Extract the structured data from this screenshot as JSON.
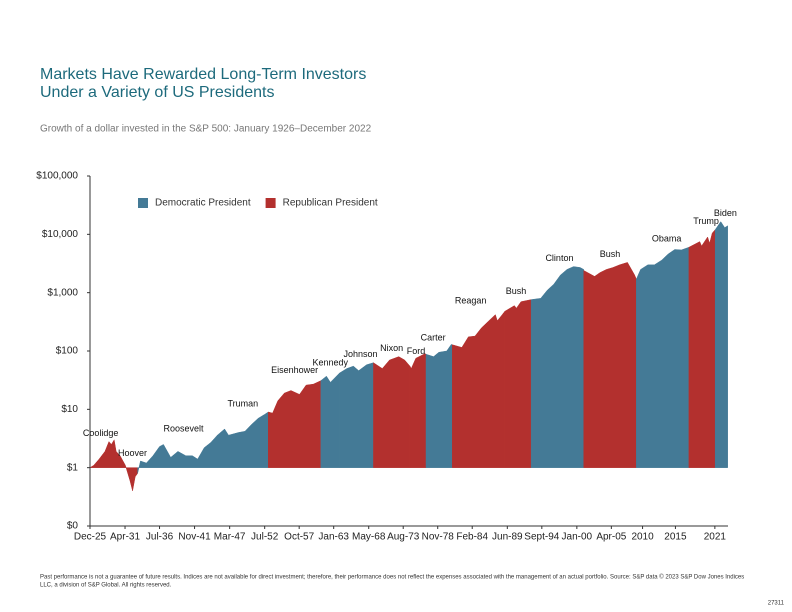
{
  "chart_data": {
    "type": "area",
    "title": [
      "Markets Have Rewarded Long-Term Investors",
      "Under a Variety of US Presidents"
    ],
    "subtitle": "Growth of a dollar invested in the S&P 500: January 1926–December 2022",
    "footnote": [
      "Past performance is not a guarantee of future results. Indices are not available for direct investment; therefore, their performance does not reflect the expenses associated with the management of an actual portfolio. Source: S&P data © 2023 S&P Dow Jones Indices",
      "LLC, a division of S&P Global. All rights reserved."
    ],
    "code": "27311",
    "log_scale": true,
    "legend": [
      {
        "name": "Democratic President",
        "color": "#447a96"
      },
      {
        "name": "Republican President",
        "color": "#b3302e"
      }
    ],
    "xlim": [
      1925.92,
      2023
    ],
    "xticks": [
      {
        "value": 1925.92,
        "label": "Dec-25"
      },
      {
        "value": 1931.25,
        "label": "Apr-31"
      },
      {
        "value": 1936.5,
        "label": "Jul-36"
      },
      {
        "value": 1941.83,
        "label": "Nov-41"
      },
      {
        "value": 1947.17,
        "label": "Mar-47"
      },
      {
        "value": 1952.5,
        "label": "Jul-52"
      },
      {
        "value": 1957.75,
        "label": "Oct-57"
      },
      {
        "value": 1963.0,
        "label": "Jan-63"
      },
      {
        "value": 1968.33,
        "label": "May-68"
      },
      {
        "value": 1973.58,
        "label": "Aug-73"
      },
      {
        "value": 1978.83,
        "label": "Nov-78"
      },
      {
        "value": 1984.08,
        "label": "Feb-84"
      },
      {
        "value": 1989.42,
        "label": "Jun-89"
      },
      {
        "value": 1994.67,
        "label": "Sept-94"
      },
      {
        "value": 2000.0,
        "label": "Jan-00"
      },
      {
        "value": 2005.25,
        "label": "Apr-05"
      },
      2010,
      2015,
      2021
    ],
    "ylim": [
      0.1,
      100000
    ],
    "yticks": [
      {
        "value": 0,
        "label": "$0"
      },
      {
        "value": 1,
        "label": "$1"
      },
      {
        "value": 10,
        "label": "$10"
      },
      {
        "value": 100,
        "label": "$100"
      },
      {
        "value": 1000,
        "label": "$1,000"
      },
      {
        "value": 10000,
        "label": "$10,000"
      },
      {
        "value": 100000,
        "label": "$100,000"
      }
    ],
    "segments": [
      {
        "name": "Coolidge",
        "color": "#b3302e",
        "x": [
          1925.92,
          1926.5,
          1927.3,
          1928.2,
          1928.8,
          1929.17
        ],
        "values": [
          1,
          1.1,
          1.4,
          1.9,
          2.8,
          2.5
        ]
      },
      {
        "name": "Hoover",
        "color": "#b3302e",
        "x": [
          1929.17,
          1929.6,
          1929.9,
          1930.5,
          1931.3,
          1932.0,
          1932.4,
          1932.8,
          1933.17
        ],
        "values": [
          2.5,
          3.0,
          1.9,
          1.6,
          1.1,
          0.6,
          0.4,
          0.7,
          0.8
        ]
      },
      {
        "name": "Roosevelt",
        "color": "#447a96",
        "x": [
          1933.17,
          1933.6,
          1934.5,
          1935.5,
          1936.5,
          1937.1,
          1938.2,
          1939.3,
          1940.5,
          1941.5,
          1942.3,
          1943.3,
          1944.3,
          1945.3
        ],
        "values": [
          0.8,
          1.3,
          1.2,
          1.6,
          2.3,
          2.5,
          1.5,
          1.9,
          1.6,
          1.6,
          1.4,
          2.2,
          2.7,
          3.6
        ]
      },
      {
        "name": "Truman",
        "color": "#447a96",
        "x": [
          1945.3,
          1946.4,
          1947.0,
          1948.5,
          1949.5,
          1950.5,
          1951.5,
          1952.5,
          1953.05
        ],
        "values": [
          3.6,
          4.6,
          3.6,
          4.0,
          4.2,
          5.5,
          7.0,
          8.2,
          9.0
        ]
      },
      {
        "name": "Eisenhower",
        "color": "#b3302e",
        "x": [
          1953.05,
          1953.7,
          1954.5,
          1955.5,
          1956.5,
          1957.8,
          1958.8,
          1959.9,
          1961.05
        ],
        "values": [
          9.0,
          8.6,
          14,
          19,
          21,
          18,
          26,
          27,
          31
        ]
      },
      {
        "name": "Kennedy",
        "color": "#447a96",
        "x": [
          1961.05,
          1961.9,
          1962.5,
          1963.9
        ],
        "values": [
          31,
          37,
          29,
          42
        ]
      },
      {
        "name": "Johnson",
        "color": "#447a96",
        "x": [
          1963.9,
          1965.0,
          1966.0,
          1966.8,
          1968.0,
          1969.05
        ],
        "values": [
          42,
          50,
          55,
          46,
          58,
          63
        ]
      },
      {
        "name": "Nixon",
        "color": "#b3302e",
        "x": [
          1969.05,
          1970.4,
          1971.5,
          1972.9,
          1973.8,
          1974.6
        ],
        "values": [
          63,
          50,
          70,
          80,
          70,
          55
        ]
      },
      {
        "name": "Ford",
        "color": "#b3302e",
        "x": [
          1974.6,
          1974.8,
          1975.5,
          1976.9,
          1977.05
        ],
        "values": [
          55,
          50,
          75,
          90,
          88
        ]
      },
      {
        "name": "Carter",
        "color": "#447a96",
        "x": [
          1977.05,
          1978.2,
          1979.0,
          1980.2,
          1980.9,
          1981.05
        ],
        "values": [
          88,
          80,
          95,
          100,
          130,
          128
        ]
      },
      {
        "name": "Reagan",
        "color": "#b3302e",
        "x": [
          1981.05,
          1982.5,
          1983.5,
          1984.5,
          1985.5,
          1986.5,
          1987.6,
          1987.9,
          1988.5,
          1989.05
        ],
        "values": [
          128,
          115,
          175,
          180,
          250,
          320,
          420,
          330,
          400,
          480
        ]
      },
      {
        "name": "Bush",
        "color": "#b3302e",
        "x": [
          1989.05,
          1990.5,
          1990.8,
          1991.5,
          1993.05
        ],
        "values": [
          480,
          600,
          540,
          700,
          760
        ]
      },
      {
        "name": "Clinton",
        "color": "#447a96",
        "x": [
          1993.05,
          1994.5,
          1995.5,
          1996.5,
          1997.5,
          1998.5,
          1999.5,
          2000.5,
          2001.05
        ],
        "values": [
          760,
          800,
          1100,
          1400,
          2000,
          2500,
          2800,
          2700,
          2500
        ]
      },
      {
        "name": "Bush",
        "color": "#b3302e",
        "x": [
          2001.05,
          2002.7,
          2003.5,
          2004.5,
          2005.5,
          2006.5,
          2007.7,
          2008.8,
          2009.05
        ],
        "values": [
          2400,
          1900,
          2200,
          2500,
          2700,
          3000,
          3300,
          2000,
          1700
        ]
      },
      {
        "name": "Obama",
        "color": "#447a96",
        "x": [
          2009.05,
          2009.7,
          2010.8,
          2011.8,
          2012.9,
          2013.9,
          2014.9,
          2015.9,
          2017.05
        ],
        "values": [
          1700,
          2500,
          3000,
          3000,
          3600,
          4600,
          5500,
          5400,
          6000
        ]
      },
      {
        "name": "Trump",
        "color": "#b3302e",
        "x": [
          2017.05,
          2018.7,
          2018.98,
          2019.9,
          2020.2,
          2020.6,
          2021.05
        ],
        "values": [
          6000,
          7500,
          6300,
          9000,
          7000,
          10500,
          12000
        ]
      },
      {
        "name": "Biden",
        "color": "#447a96",
        "x": [
          2021.05,
          2021.9,
          2022.5,
          2022.95
        ],
        "values": [
          12000,
          16500,
          13000,
          14000
        ]
      }
    ]
  }
}
